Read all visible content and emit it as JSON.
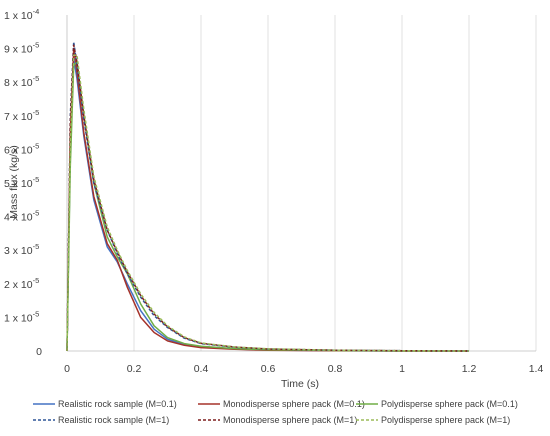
{
  "chart_data": {
    "type": "line",
    "xlabel": "Time (s)",
    "ylabel": "Mass flux  (kg/s)",
    "xlim": [
      0,
      1.4
    ],
    "ylim": [
      0,
      0.0001
    ],
    "x_ticks": [
      "0",
      "0.2",
      "0.4",
      "0.6",
      "0.8",
      "1",
      "1.2",
      "1.4"
    ],
    "y_ticks": [
      {
        "mant": "",
        "exp": "",
        "plain": "0"
      },
      {
        "mant": "1 x 10",
        "exp": "-5"
      },
      {
        "mant": "2 x 10",
        "exp": "-5"
      },
      {
        "mant": "3 x 10",
        "exp": "-5"
      },
      {
        "mant": "4 x 10",
        "exp": "-5"
      },
      {
        "mant": "5 x 10",
        "exp": "-5"
      },
      {
        "mant": "6 x 10",
        "exp": "-5"
      },
      {
        "mant": "7 x 10",
        "exp": "-5"
      },
      {
        "mant": "8 x 10",
        "exp": "-5"
      },
      {
        "mant": "9 x 10",
        "exp": "-5"
      },
      {
        "mant": "1 x 10",
        "exp": "-4"
      }
    ],
    "grid": "vertical",
    "legend_position": "bottom",
    "series": [
      {
        "name": "Realistic rock sample (M=0.1)",
        "color": "#4472c4",
        "dash": "solid",
        "x": [
          0,
          0.01,
          0.02,
          0.03,
          0.05,
          0.08,
          0.12,
          0.15,
          0.18,
          0.22,
          0.26,
          0.3,
          0.35,
          0.4,
          0.5,
          0.6,
          0.8,
          1.0,
          1.2
        ],
        "y": [
          0,
          6e-05,
          8.7e-05,
          8.1e-05,
          6.4e-05,
          4.5e-05,
          3.1e-05,
          2.65e-05,
          2e-05,
          1.2e-05,
          6.5e-06,
          3.5e-06,
          1.9e-06,
          1.2e-06,
          6e-07,
          3e-07,
          1e-07,
          0,
          0
        ]
      },
      {
        "name": "Monodisperse sphere pack (M=0.1)",
        "color": "#a5322a",
        "dash": "solid",
        "x": [
          0,
          0.01,
          0.02,
          0.03,
          0.05,
          0.08,
          0.12,
          0.15,
          0.18,
          0.22,
          0.26,
          0.3,
          0.35,
          0.4,
          0.5,
          0.6,
          0.8,
          1.0,
          1.2
        ],
        "y": [
          0,
          6.5e-05,
          9e-05,
          8.3e-05,
          6.5e-05,
          4.6e-05,
          3.2e-05,
          2.7e-05,
          1.9e-05,
          1e-05,
          5.5e-06,
          3e-06,
          1.7e-06,
          1e-06,
          5e-07,
          2.5e-07,
          1e-07,
          0,
          0
        ]
      },
      {
        "name": "Polydisperse sphere pack (M=0.1)",
        "color": "#70ad47",
        "dash": "solid",
        "x": [
          0,
          0.01,
          0.02,
          0.03,
          0.05,
          0.08,
          0.12,
          0.15,
          0.18,
          0.22,
          0.26,
          0.3,
          0.35,
          0.4,
          0.5,
          0.6,
          0.8,
          1.0,
          1.2
        ],
        "y": [
          0,
          5.5e-05,
          8.5e-05,
          8.6e-05,
          7e-05,
          5e-05,
          3.4e-05,
          2.8e-05,
          2.3e-05,
          1.4e-05,
          7.5e-06,
          4e-06,
          2.2e-06,
          1.4e-06,
          7e-07,
          3.5e-07,
          1.5e-07,
          0,
          0
        ]
      },
      {
        "name": "Realistic rock sample (M=1)",
        "color": "#2f5597",
        "dash": "dashed",
        "x": [
          0,
          0.01,
          0.02,
          0.03,
          0.05,
          0.08,
          0.12,
          0.15,
          0.18,
          0.22,
          0.26,
          0.3,
          0.35,
          0.4,
          0.5,
          0.6,
          0.8,
          1.0,
          1.2
        ],
        "y": [
          0,
          7e-05,
          9.2e-05,
          8.5e-05,
          6.9e-05,
          5e-05,
          3.6e-05,
          2.9e-05,
          2.3e-05,
          1.6e-05,
          1.05e-05,
          7e-06,
          3.8e-06,
          2.2e-06,
          1.1e-06,
          6e-07,
          2.5e-07,
          1e-07,
          0
        ]
      },
      {
        "name": "Monodisperse sphere pack (M=1)",
        "color": "#7f1f1f",
        "dash": "dashed",
        "x": [
          0,
          0.01,
          0.02,
          0.03,
          0.05,
          0.08,
          0.12,
          0.15,
          0.18,
          0.22,
          0.26,
          0.3,
          0.35,
          0.4,
          0.5,
          0.6,
          0.8,
          1.0,
          1.2
        ],
        "y": [
          0,
          6.8e-05,
          9.1e-05,
          8.6e-05,
          7e-05,
          5.1e-05,
          3.6e-05,
          2.95e-05,
          2.35e-05,
          1.65e-05,
          1.1e-05,
          7.2e-06,
          4e-06,
          2.3e-06,
          1.2e-06,
          6e-07,
          2.5e-07,
          1e-07,
          0
        ]
      },
      {
        "name": "Polydisperse sphere pack (M=1)",
        "color": "#9bbb59",
        "dash": "dashed",
        "x": [
          0,
          0.01,
          0.02,
          0.03,
          0.05,
          0.08,
          0.12,
          0.15,
          0.18,
          0.22,
          0.26,
          0.3,
          0.35,
          0.4,
          0.5,
          0.6,
          0.8,
          1.0,
          1.2
        ],
        "y": [
          0,
          6.2e-05,
          8.8e-05,
          8.8e-05,
          7.2e-05,
          5.2e-05,
          3.7e-05,
          3e-05,
          2.4e-05,
          1.7e-05,
          1.15e-05,
          7.5e-06,
          4.2e-06,
          2.4e-06,
          1.2e-06,
          6.5e-07,
          2.5e-07,
          1e-07,
          0
        ]
      }
    ]
  }
}
